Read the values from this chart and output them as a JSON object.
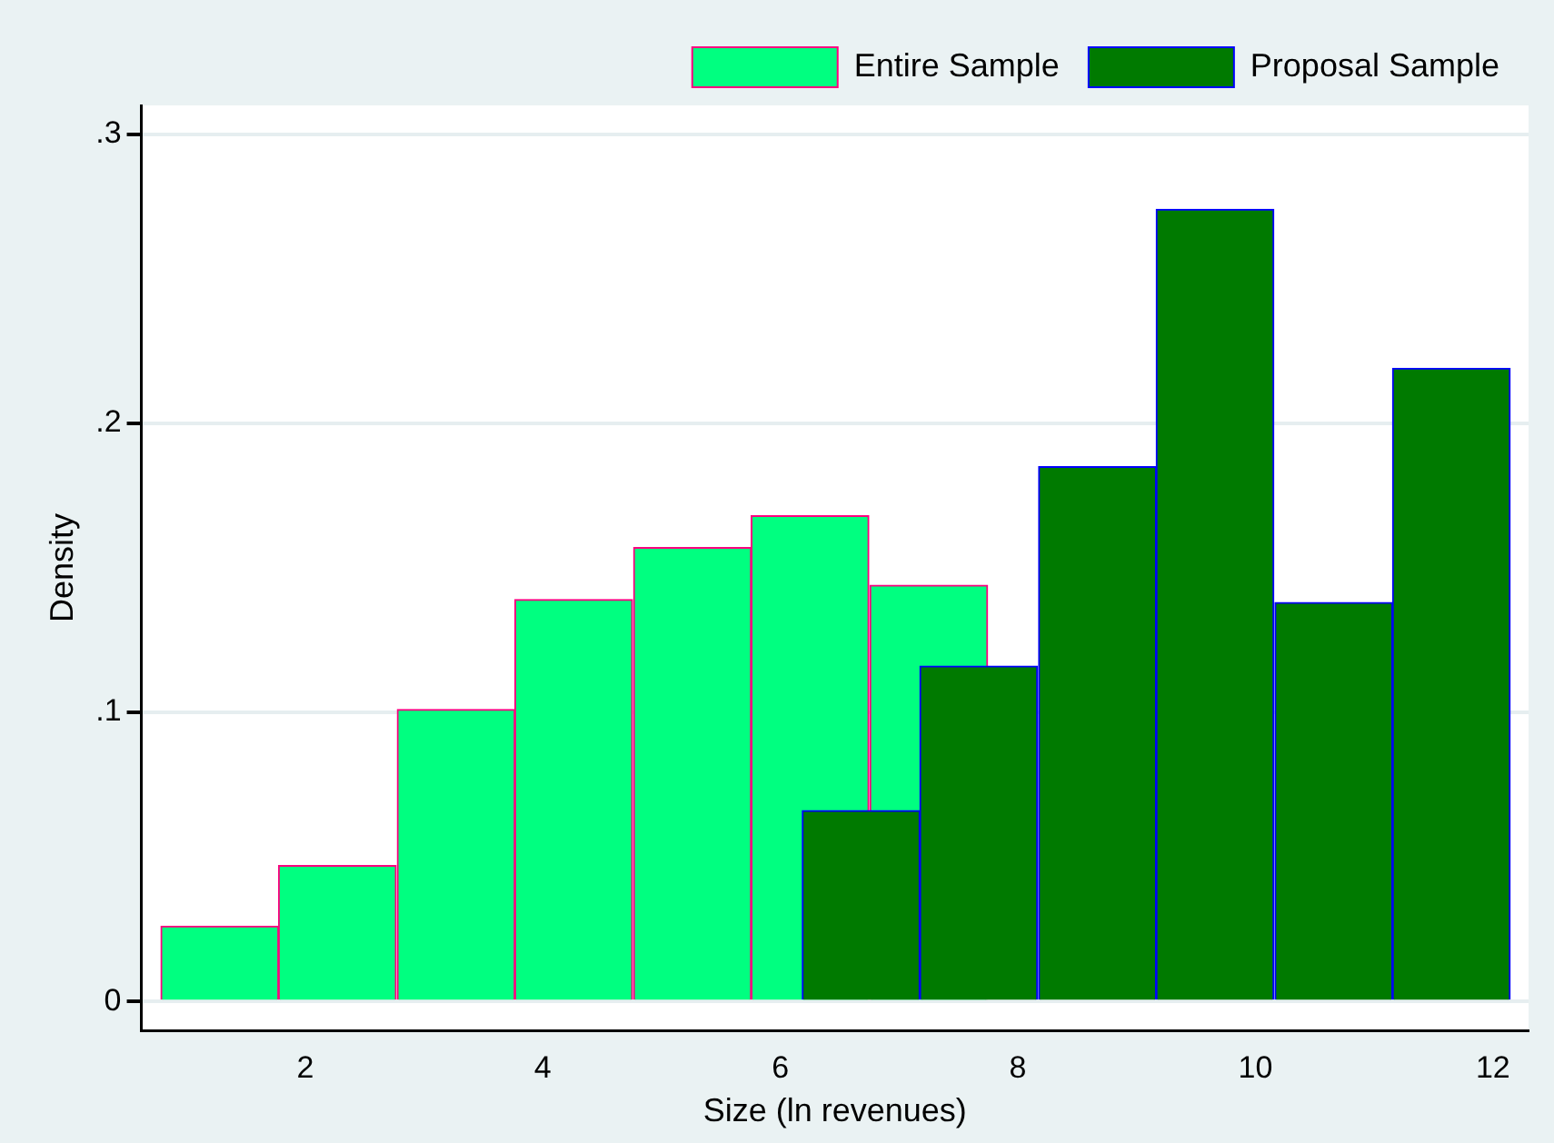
{
  "chart_data": {
    "type": "bar",
    "xlabel": "Size (ln revenues)",
    "ylabel": "Density",
    "series": [
      {
        "name": "Entire Sample",
        "color": "#00ff80",
        "x": [
          1.28,
          2.27,
          3.27,
          4.26,
          5.26,
          6.25,
          7.25
        ],
        "values": [
          0.026,
          0.047,
          0.101,
          0.139,
          0.157,
          0.168,
          0.144
        ]
      },
      {
        "name": "Proposal Sample",
        "color": "#007a00",
        "x": [
          6.68,
          7.67,
          8.67,
          9.66,
          10.66,
          11.65
        ],
        "values": [
          0.066,
          0.116,
          0.185,
          0.274,
          0.138,
          0.219
        ]
      }
    ],
    "xlim": [
      0.62,
      12.3
    ],
    "xticks": [
      2,
      4,
      6,
      8,
      10,
      12
    ],
    "ylim": [
      -0.01,
      0.31
    ],
    "yticks": [
      {
        "value": 0,
        "label": "0"
      },
      {
        "value": 0.1,
        "label": ".1"
      },
      {
        "value": 0.2,
        "label": ".2"
      },
      {
        "value": 0.3,
        "label": ".3"
      }
    ],
    "grid": "y",
    "legend": "top right"
  }
}
